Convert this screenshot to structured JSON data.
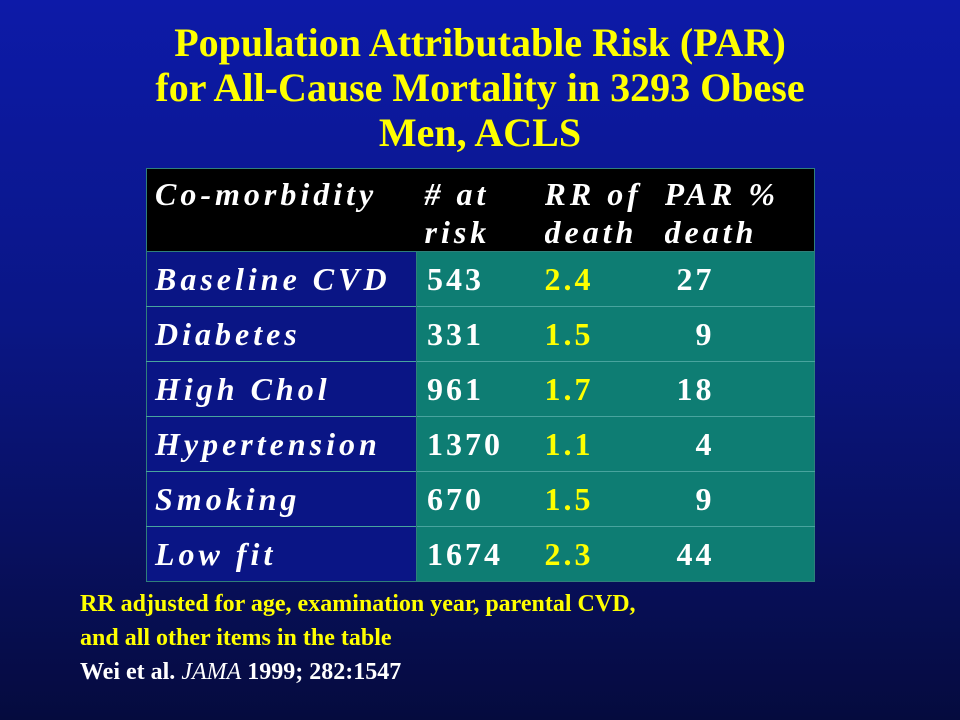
{
  "title": {
    "line1": "Population Attributable Risk (PAR)",
    "line2": "for All-Cause Mortality in 3293 Obese",
    "line3": "Men, ACLS"
  },
  "table": {
    "headers": {
      "comorbidity": "Co-morbidity",
      "at_risk_1": "# at",
      "at_risk_2": "risk",
      "rr_1": "RR of",
      "rr_2": "death",
      "par_1": "PAR %",
      "par_2": "death"
    },
    "rows": [
      {
        "name": "Baseline CVD",
        "at_risk": "543",
        "rr": "2.4",
        "par": "27"
      },
      {
        "name": "Diabetes",
        "at_risk": "331",
        "rr": "1.5",
        "par": "9"
      },
      {
        "name": "High Chol",
        "at_risk": "961",
        "rr": "1.7",
        "par": "18"
      },
      {
        "name": "Hypertension",
        "at_risk": "1370",
        "rr": "1.1",
        "par": "4"
      },
      {
        "name": "Smoking",
        "at_risk": "670",
        "rr": "1.5",
        "par": "9"
      },
      {
        "name": "Low fit",
        "at_risk": "1674",
        "rr": "2.3",
        "par": "44"
      }
    ]
  },
  "footnote": {
    "line1": "RR adjusted for age, examination year, parental CVD,",
    "line2": "and all other items in the table",
    "citation_author": "Wei et al. ",
    "citation_journal": "JAMA",
    "citation_rest": " 1999; 282:1547"
  },
  "colors": {
    "background": "#0a1685",
    "title": "#ffff00",
    "header_bg": "#000000",
    "data_bg": "#0e7d73",
    "rr_text": "#ffff00"
  }
}
